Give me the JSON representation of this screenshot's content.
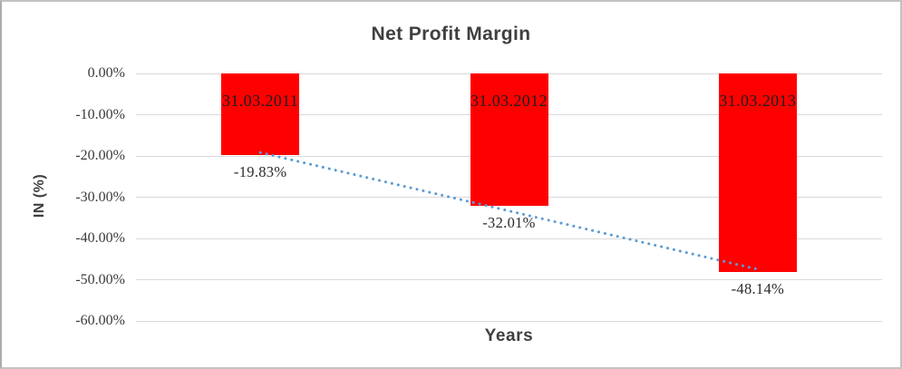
{
  "chart_data": {
    "type": "bar",
    "title": "Net Profit Margin",
    "categories": [
      "31.03.2011",
      "31.03.2012",
      "31.03.2013"
    ],
    "values": [
      -19.83,
      -32.01,
      -48.14
    ],
    "value_labels": [
      "-19.83%",
      "-32.01%",
      "-48.14%"
    ],
    "xlabel": "Years",
    "ylabel": "IN (%)",
    "ylim": [
      -60,
      0
    ],
    "ytick_step": 10,
    "ytick_labels": [
      "0.00%",
      "-10.00%",
      "-20.00%",
      "-30.00%",
      "-40.00%",
      "-50.00%",
      "-60.00%"
    ],
    "grid": true,
    "legend": "none",
    "trendline": {
      "type": "linear",
      "style": "dotted",
      "fits_series": "values"
    },
    "colors": {
      "bar": "#FF0000",
      "trendline": "#5B9BD5",
      "gridline": "#D9D9D9",
      "title_text": "#3F3F3F",
      "axis_text": "#3A3A3A",
      "category_label_text": "#1F1F1F",
      "value_label_text": "#2B2B2B"
    }
  }
}
